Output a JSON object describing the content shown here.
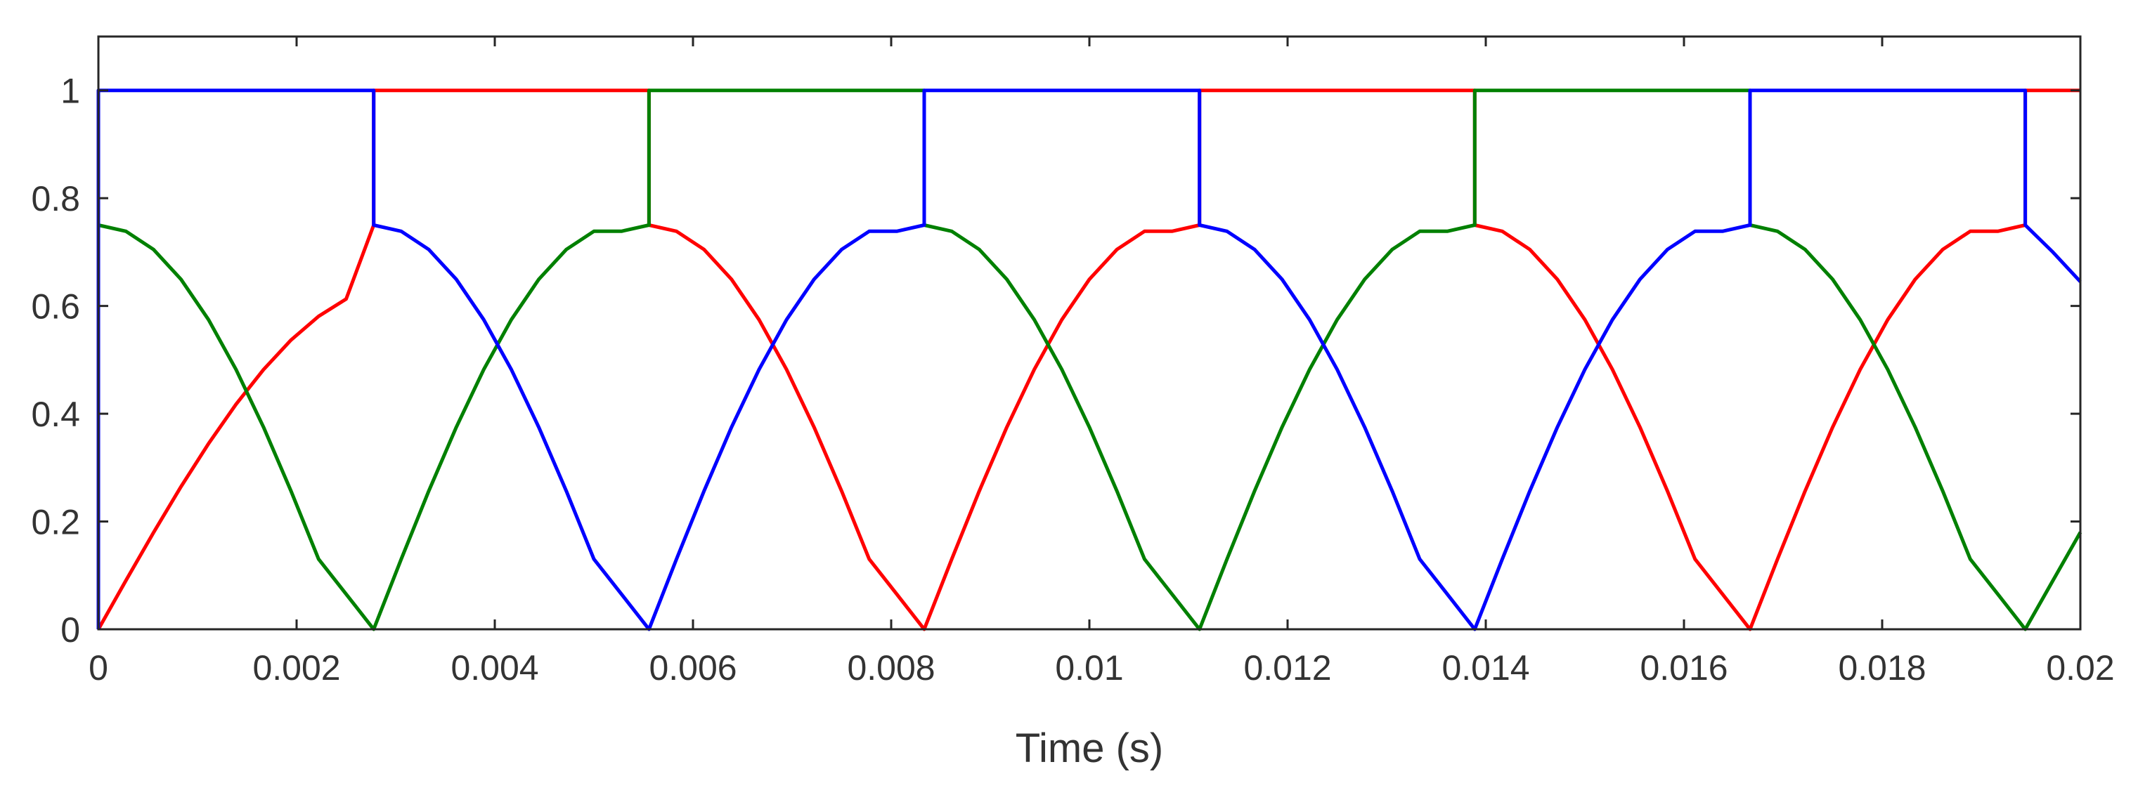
{
  "chart_data": {
    "type": "line",
    "title": "",
    "xlabel": "Time (s)",
    "ylabel": "",
    "xlim": [
      0,
      0.02
    ],
    "ylim": [
      0,
      1.1
    ],
    "grid": false,
    "legend": "none",
    "xticks": [
      0,
      0.002,
      0.004,
      0.006,
      0.008,
      0.01,
      0.012,
      0.014,
      0.016,
      0.018,
      0.02
    ],
    "xtick_labels": [
      "0",
      "0.002",
      "0.004",
      "0.006",
      "0.008",
      "0.01",
      "0.012",
      "0.014",
      "0.016",
      "0.018",
      "0.02"
    ],
    "yticks": [
      0,
      0.2,
      0.4,
      0.6,
      0.8,
      1
    ],
    "ytick_labels": [
      "0",
      "0.2",
      "0.4",
      "0.6",
      "0.8",
      "1"
    ],
    "series": [
      {
        "color": "#ff0000",
        "x": [
          0,
          0.000278,
          0.000556,
          0.000833,
          0.001111,
          0.001389,
          0.001667,
          0.001944,
          0.002222,
          0.0025,
          0.002778,
          0.002778,
          0.005556,
          0.005556,
          0.005833,
          0.006111,
          0.006389,
          0.006667,
          0.006944,
          0.007222,
          0.0075,
          0.007778,
          0.008056,
          0.008333,
          0.008611,
          0.008889,
          0.009167,
          0.009444,
          0.009722,
          0.01,
          0.010278,
          0.010556,
          0.010833,
          0.011111,
          0.011111,
          0.013889,
          0.013889,
          0.014167,
          0.014444,
          0.014722,
          0.015,
          0.015278,
          0.015556,
          0.015833,
          0.016111,
          0.016389,
          0.016667,
          0.016944,
          0.017222,
          0.0175,
          0.017778,
          0.018056,
          0.018333,
          0.018611,
          0.018889,
          0.019167,
          0.019444,
          0.019444,
          0.02
        ],
        "y": [
          0,
          0.0906,
          0.1794,
          0.2646,
          0.3445,
          0.4175,
          0.482,
          0.5368,
          0.5808,
          0.613,
          0.75,
          1,
          1,
          0.75,
          0.7386,
          0.7048,
          0.6495,
          0.5745,
          0.4821,
          0.375,
          0.2565,
          0.1302,
          0.0653,
          0,
          0.1302,
          0.2565,
          0.375,
          0.4821,
          0.5745,
          0.6495,
          0.7048,
          0.7386,
          0.7386,
          0.75,
          1,
          1,
          0.75,
          0.7386,
          0.7048,
          0.6495,
          0.5745,
          0.4821,
          0.375,
          0.2565,
          0.1302,
          0.0653,
          0,
          0.1302,
          0.2565,
          0.375,
          0.4821,
          0.5745,
          0.6495,
          0.7048,
          0.7386,
          0.7386,
          0.75,
          1,
          1
        ]
      },
      {
        "color": "#008000",
        "x": [
          0,
          0.000278,
          0.000556,
          0.000833,
          0.001111,
          0.001389,
          0.001667,
          0.001944,
          0.002222,
          0.0025,
          0.002778,
          0.003056,
          0.003333,
          0.003611,
          0.003889,
          0.004167,
          0.004444,
          0.004722,
          0.005,
          0.005278,
          0.005556,
          0.005556,
          0.008333,
          0.008333,
          0.008611,
          0.008889,
          0.009167,
          0.009444,
          0.009722,
          0.01,
          0.010278,
          0.010556,
          0.010833,
          0.011111,
          0.011389,
          0.011667,
          0.011944,
          0.012222,
          0.0125,
          0.012778,
          0.013056,
          0.013333,
          0.013611,
          0.013889,
          0.013889,
          0.016667,
          0.016667,
          0.016944,
          0.017222,
          0.0175,
          0.017778,
          0.018056,
          0.018333,
          0.018611,
          0.018889,
          0.019167,
          0.019444,
          0.019722,
          0.02
        ],
        "y": [
          0.75,
          0.7386,
          0.7048,
          0.6495,
          0.5745,
          0.4821,
          0.375,
          0.2565,
          0.1302,
          0.0653,
          0,
          0.1302,
          0.2565,
          0.375,
          0.4821,
          0.5745,
          0.6495,
          0.7048,
          0.7386,
          0.7386,
          0.75,
          1,
          1,
          0.75,
          0.7386,
          0.7048,
          0.6495,
          0.5745,
          0.4821,
          0.375,
          0.2565,
          0.1302,
          0.0653,
          0,
          0.1302,
          0.2565,
          0.375,
          0.4821,
          0.5745,
          0.6495,
          0.7048,
          0.7386,
          0.7386,
          0.75,
          1,
          1,
          0.75,
          0.7386,
          0.7048,
          0.6495,
          0.5745,
          0.4821,
          0.375,
          0.2565,
          0.1302,
          0.0653,
          0,
          0.09,
          0.18
        ]
      },
      {
        "color": "#0000ff",
        "x": [
          0,
          0,
          0.002778,
          0.002778,
          0.003056,
          0.003333,
          0.003611,
          0.003889,
          0.004167,
          0.004444,
          0.004722,
          0.005,
          0.005278,
          0.005556,
          0.005833,
          0.006111,
          0.006389,
          0.006667,
          0.006944,
          0.007222,
          0.0075,
          0.007778,
          0.008056,
          0.008333,
          0.008333,
          0.011111,
          0.011111,
          0.011389,
          0.011667,
          0.011944,
          0.012222,
          0.0125,
          0.012778,
          0.013056,
          0.013333,
          0.013611,
          0.013889,
          0.014167,
          0.014444,
          0.014722,
          0.015,
          0.015278,
          0.015556,
          0.015833,
          0.016111,
          0.016389,
          0.016667,
          0.016667,
          0.019444,
          0.019444,
          0.019722,
          0.02
        ],
        "y": [
          0,
          1,
          1,
          0.75,
          0.7386,
          0.7048,
          0.6495,
          0.5745,
          0.4821,
          0.375,
          0.2565,
          0.1302,
          0.0653,
          0,
          0.1302,
          0.2565,
          0.375,
          0.4821,
          0.5745,
          0.6495,
          0.7048,
          0.7386,
          0.7386,
          0.75,
          1,
          1,
          0.75,
          0.7386,
          0.7048,
          0.6495,
          0.5745,
          0.4821,
          0.375,
          0.2565,
          0.1302,
          0.0653,
          0,
          0.1302,
          0.2565,
          0.375,
          0.4821,
          0.5745,
          0.6495,
          0.7048,
          0.7386,
          0.7386,
          0.75,
          1,
          1,
          0.75,
          0.7,
          0.645
        ]
      }
    ]
  }
}
